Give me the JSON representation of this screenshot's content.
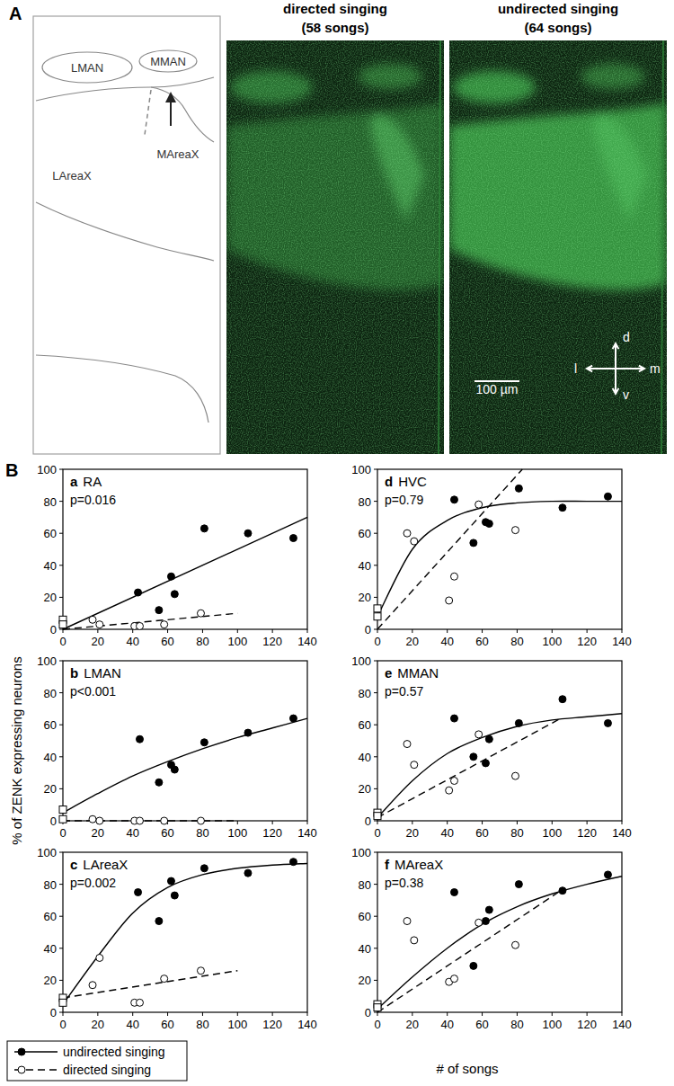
{
  "panel_a": {
    "label": "A",
    "schematic_labels": [
      "LMAN",
      "MMAN",
      "LAreaX",
      "MAreaX"
    ],
    "images": [
      {
        "title": "directed singing",
        "subtitle": "(58 songs)"
      },
      {
        "title": "undirected singing",
        "subtitle": "(64 songs)"
      }
    ],
    "compass": [
      "d",
      "v",
      "l",
      "m"
    ],
    "scale_bar": "100 µm"
  },
  "panel_b": {
    "label": "B",
    "y_label": "% of ZENK expressing neurons",
    "x_label": "# of songs",
    "legend": [
      {
        "name": "undirected singing",
        "marker": "filled",
        "line_style": "solid"
      },
      {
        "name": "directed singing",
        "marker": "open",
        "line_style": "dashed"
      }
    ]
  },
  "chart_data": [
    {
      "type": "scatter",
      "label": "a",
      "title": "RA",
      "annotation": "p=0.016",
      "xlim": [
        0,
        140
      ],
      "ylim": [
        0,
        100
      ],
      "xticks": [
        0,
        20,
        40,
        60,
        80,
        100,
        120,
        140
      ],
      "yticks": [
        0,
        20,
        40,
        60,
        80,
        100
      ],
      "series": [
        {
          "type": "scatter",
          "marker": "filled",
          "x": [
            43,
            55,
            62,
            64,
            81,
            106,
            132
          ],
          "values": [
            23,
            12,
            33,
            22,
            63,
            60,
            57
          ]
        },
        {
          "type": "scatter",
          "marker": "open",
          "x": [
            17,
            21,
            41,
            44,
            58,
            79
          ],
          "values": [
            6,
            3,
            2,
            2,
            3,
            10
          ]
        },
        {
          "type": "scatter",
          "marker": "square",
          "x": [
            0,
            0
          ],
          "values": [
            6,
            3
          ]
        },
        {
          "type": "line",
          "line_style": "solid",
          "x": [
            0,
            140
          ],
          "values": [
            0,
            70
          ]
        },
        {
          "type": "line",
          "line_style": "dashed",
          "x": [
            0,
            100
          ],
          "values": [
            0,
            10
          ]
        }
      ]
    },
    {
      "type": "scatter",
      "label": "b",
      "title": "LMAN",
      "annotation": "p<0.001",
      "xlim": [
        0,
        140
      ],
      "ylim": [
        0,
        100
      ],
      "xticks": [
        0,
        20,
        40,
        60,
        80,
        100,
        120,
        140
      ],
      "yticks": [
        0,
        20,
        40,
        60,
        80,
        100
      ],
      "series": [
        {
          "type": "scatter",
          "marker": "filled",
          "x": [
            44,
            55,
            62,
            64,
            81,
            106,
            132
          ],
          "values": [
            51,
            24,
            35,
            32,
            49,
            55,
            64
          ]
        },
        {
          "type": "scatter",
          "marker": "open",
          "x": [
            17,
            21,
            41,
            44,
            58,
            79
          ],
          "values": [
            1,
            0,
            0,
            0,
            0,
            0
          ]
        },
        {
          "type": "scatter",
          "marker": "square",
          "x": [
            0,
            0
          ],
          "values": [
            7,
            1
          ]
        },
        {
          "type": "line",
          "line_style": "solid",
          "x": [
            0,
            20,
            40,
            60,
            80,
            100,
            120,
            140
          ],
          "values": [
            5,
            17,
            28,
            37,
            45,
            52,
            58,
            64
          ]
        },
        {
          "type": "line",
          "line_style": "dashed",
          "x": [
            0,
            100
          ],
          "values": [
            0,
            0
          ]
        }
      ]
    },
    {
      "type": "scatter",
      "label": "c",
      "title": "LAreaX",
      "annotation": "p=0.002",
      "xlim": [
        0,
        140
      ],
      "ylim": [
        0,
        100
      ],
      "xticks": [
        0,
        20,
        40,
        60,
        80,
        100,
        120,
        140
      ],
      "yticks": [
        0,
        20,
        40,
        60,
        80,
        100
      ],
      "series": [
        {
          "type": "scatter",
          "marker": "filled",
          "x": [
            43,
            55,
            62,
            64,
            81,
            106,
            132
          ],
          "values": [
            75,
            57,
            82,
            73,
            90,
            87,
            94
          ]
        },
        {
          "type": "scatter",
          "marker": "open",
          "x": [
            17,
            21,
            41,
            44,
            58,
            79
          ],
          "values": [
            17,
            34,
            6,
            6,
            21,
            26
          ]
        },
        {
          "type": "scatter",
          "marker": "square",
          "x": [
            0,
            0
          ],
          "values": [
            9,
            6
          ]
        },
        {
          "type": "line",
          "line_style": "solid",
          "x": [
            0,
            20,
            40,
            60,
            80,
            100,
            120,
            140
          ],
          "values": [
            5,
            35,
            62,
            78,
            86,
            90,
            92,
            93
          ]
        },
        {
          "type": "line",
          "line_style": "dashed",
          "x": [
            0,
            100
          ],
          "values": [
            9,
            26
          ]
        }
      ]
    },
    {
      "type": "scatter",
      "label": "d",
      "title": "HVC",
      "annotation": "p=0.79",
      "xlim": [
        0,
        140
      ],
      "ylim": [
        0,
        100
      ],
      "xticks": [
        0,
        20,
        40,
        60,
        80,
        100,
        120,
        140
      ],
      "yticks": [
        0,
        20,
        40,
        60,
        80,
        100
      ],
      "series": [
        {
          "type": "scatter",
          "marker": "filled",
          "x": [
            44,
            55,
            62,
            64,
            81,
            106,
            132
          ],
          "values": [
            81,
            54,
            67,
            66,
            88,
            76,
            83
          ]
        },
        {
          "type": "scatter",
          "marker": "open",
          "x": [
            17,
            21,
            41,
            44,
            58,
            79
          ],
          "values": [
            60,
            55,
            18,
            33,
            78,
            62
          ]
        },
        {
          "type": "scatter",
          "marker": "square",
          "x": [
            0,
            0
          ],
          "values": [
            13,
            8
          ]
        },
        {
          "type": "line",
          "line_style": "solid",
          "x": [
            0,
            20,
            40,
            60,
            80,
            100,
            120,
            140
          ],
          "values": [
            8,
            50,
            68,
            76,
            79,
            80,
            80,
            80
          ]
        },
        {
          "type": "line",
          "line_style": "dashed",
          "x": [
            0,
            83
          ],
          "values": [
            0,
            100
          ]
        }
      ]
    },
    {
      "type": "scatter",
      "label": "e",
      "title": "MMAN",
      "annotation": "p=0.57",
      "xlim": [
        0,
        140
      ],
      "ylim": [
        0,
        100
      ],
      "xticks": [
        0,
        20,
        40,
        60,
        80,
        100,
        120,
        140
      ],
      "yticks": [
        0,
        20,
        40,
        60,
        80,
        100
      ],
      "series": [
        {
          "type": "scatter",
          "marker": "filled",
          "x": [
            44,
            55,
            62,
            64,
            81,
            106,
            132
          ],
          "values": [
            64,
            40,
            36,
            51,
            61,
            76,
            61
          ]
        },
        {
          "type": "scatter",
          "marker": "open",
          "x": [
            17,
            21,
            41,
            44,
            58,
            79
          ],
          "values": [
            48,
            35,
            19,
            25,
            54,
            28
          ]
        },
        {
          "type": "scatter",
          "marker": "square",
          "x": [
            0,
            0
          ],
          "values": [
            5,
            3
          ]
        },
        {
          "type": "line",
          "line_style": "solid",
          "x": [
            0,
            20,
            40,
            60,
            80,
            100,
            120,
            140
          ],
          "values": [
            2,
            25,
            42,
            52,
            59,
            63,
            65,
            67
          ]
        },
        {
          "type": "line",
          "line_style": "dashed",
          "x": [
            0,
            105
          ],
          "values": [
            2,
            64
          ]
        }
      ]
    },
    {
      "type": "scatter",
      "label": "f",
      "title": "MAreaX",
      "annotation": "p=0.38",
      "xlim": [
        0,
        140
      ],
      "ylim": [
        0,
        100
      ],
      "xticks": [
        0,
        20,
        40,
        60,
        80,
        100,
        120,
        140
      ],
      "yticks": [
        0,
        20,
        40,
        60,
        80,
        100
      ],
      "series": [
        {
          "type": "scatter",
          "marker": "filled",
          "x": [
            44,
            55,
            62,
            64,
            81,
            106,
            132
          ],
          "values": [
            75,
            29,
            57,
            64,
            80,
            76,
            86
          ]
        },
        {
          "type": "scatter",
          "marker": "open",
          "x": [
            17,
            21,
            41,
            44,
            58,
            79
          ],
          "values": [
            57,
            45,
            19,
            21,
            56,
            42
          ]
        },
        {
          "type": "scatter",
          "marker": "square",
          "x": [
            0,
            0
          ],
          "values": [
            5,
            3
          ]
        },
        {
          "type": "line",
          "line_style": "solid",
          "x": [
            0,
            20,
            40,
            60,
            80,
            100,
            120,
            140
          ],
          "values": [
            2,
            22,
            40,
            55,
            66,
            74,
            80,
            85
          ]
        },
        {
          "type": "line",
          "line_style": "dashed",
          "x": [
            0,
            105
          ],
          "values": [
            0,
            76
          ]
        }
      ]
    }
  ]
}
